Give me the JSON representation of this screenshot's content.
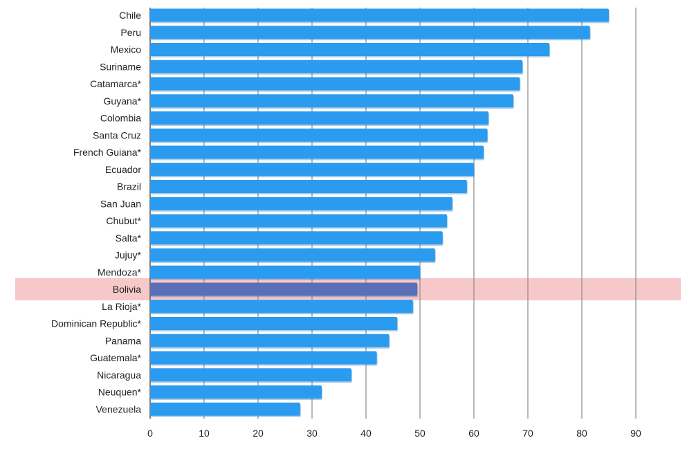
{
  "chart_data": {
    "type": "bar",
    "orientation": "horizontal",
    "categories": [
      "Chile",
      "Peru",
      "Mexico",
      "Suriname",
      "Catamarca*",
      "Guyana*",
      "Colombia",
      "Santa Cruz",
      "French Guiana*",
      "Ecuador",
      "Brazil",
      "San Juan",
      "Chubut*",
      "Salta*",
      "Jujuy*",
      "Mendoza*",
      "Bolivia",
      "La Rioja*",
      "Dominican Republic*",
      "Panama",
      "Guatemala*",
      "Nicaragua",
      "Neuquen*",
      "Venezuela"
    ],
    "values": [
      85,
      81.5,
      74,
      69,
      68.5,
      67.3,
      62.7,
      62.5,
      61.8,
      60,
      58.7,
      56,
      55,
      54.2,
      52.8,
      50,
      49.5,
      48.7,
      45.8,
      44.3,
      42,
      37.3,
      31.8,
      27.8
    ],
    "highlight": "Bolivia",
    "xlim": [
      0,
      90
    ],
    "xticks": [
      "0",
      "10",
      "20",
      "30",
      "40",
      "50",
      "60",
      "70",
      "80",
      "90"
    ],
    "grid": "vertical",
    "colors": {
      "bar": "#2b9bf0",
      "bar_shadow": "#1a6fb8",
      "highlight_band": "#f4b6b8",
      "highlight_bar": "#5a6fb5",
      "gridline": "#8a8a8a"
    }
  }
}
